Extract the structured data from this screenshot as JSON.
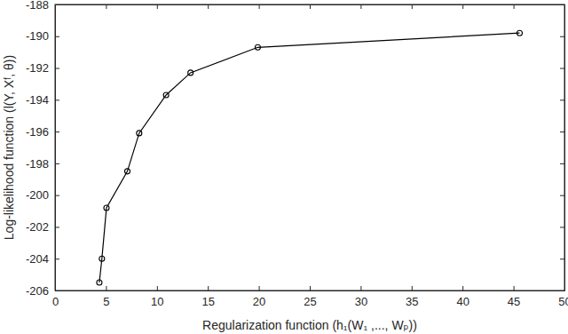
{
  "chart_data": {
    "type": "line",
    "x_label": "Regularization function (h₁(W₁ ,..., Wₚ))",
    "y_label": "Log-likelihood function (l(Y, Xᶠ, θ))",
    "x": [
      4.35,
      4.6,
      5.05,
      7.1,
      8.26,
      10.9,
      13.3,
      19.9,
      45.6
    ],
    "series": [
      {
        "name": "Log-likelihood",
        "color": "#000000",
        "marker": "circle",
        "line_style": "solid",
        "values": [
          -205.5,
          -204.0,
          -200.8,
          -198.5,
          -196.1,
          -193.7,
          -192.3,
          -190.7,
          -189.8
        ]
      }
    ],
    "xlim": [
      0,
      50
    ],
    "xticks": [
      0,
      5,
      10,
      15,
      20,
      25,
      30,
      35,
      40,
      45,
      50
    ],
    "ylim": [
      -206,
      -188
    ],
    "yticks": [
      -206,
      -204,
      -202,
      -200,
      -198,
      -196,
      -194,
      -192,
      -190,
      -188
    ],
    "grid": false
  }
}
